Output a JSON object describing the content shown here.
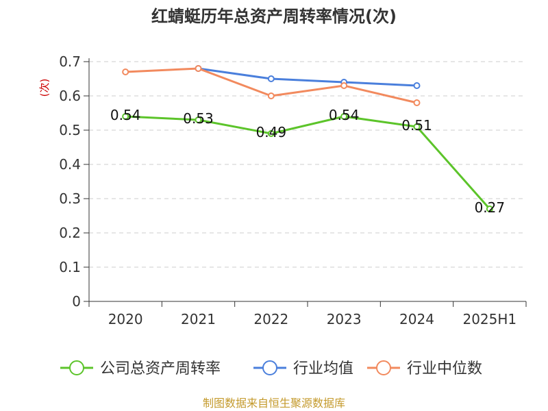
{
  "chart_data": {
    "type": "line",
    "title": "红蜻蜓历年总资产周转率情况(次)",
    "ylabel": "(次)",
    "xlabel": "",
    "categories": [
      "2020",
      "2021",
      "2022",
      "2023",
      "2024",
      "2025H1"
    ],
    "ylim": [
      0,
      0.7
    ],
    "yticks": [
      "0",
      "0.1",
      "0.2",
      "0.3",
      "0.4",
      "0.5",
      "0.6",
      "0.7"
    ],
    "grid": true,
    "legend_position": "bottom",
    "series": [
      {
        "name": "公司总资产周转率",
        "color": "#5cc42a",
        "values": [
          0.54,
          0.53,
          0.49,
          0.54,
          0.51,
          0.27
        ],
        "labels": [
          "0.54",
          "0.53",
          "0.49",
          "0.54",
          "0.51",
          "0.27"
        ]
      },
      {
        "name": "行业均值",
        "color": "#4a7fdc",
        "values": [
          null,
          0.68,
          0.65,
          0.64,
          0.63,
          null
        ]
      },
      {
        "name": "行业中位数",
        "color": "#f28a5e",
        "values": [
          0.67,
          0.68,
          0.6,
          0.63,
          0.58,
          null
        ]
      }
    ]
  },
  "source": "制图数据来自恒生聚源数据库"
}
